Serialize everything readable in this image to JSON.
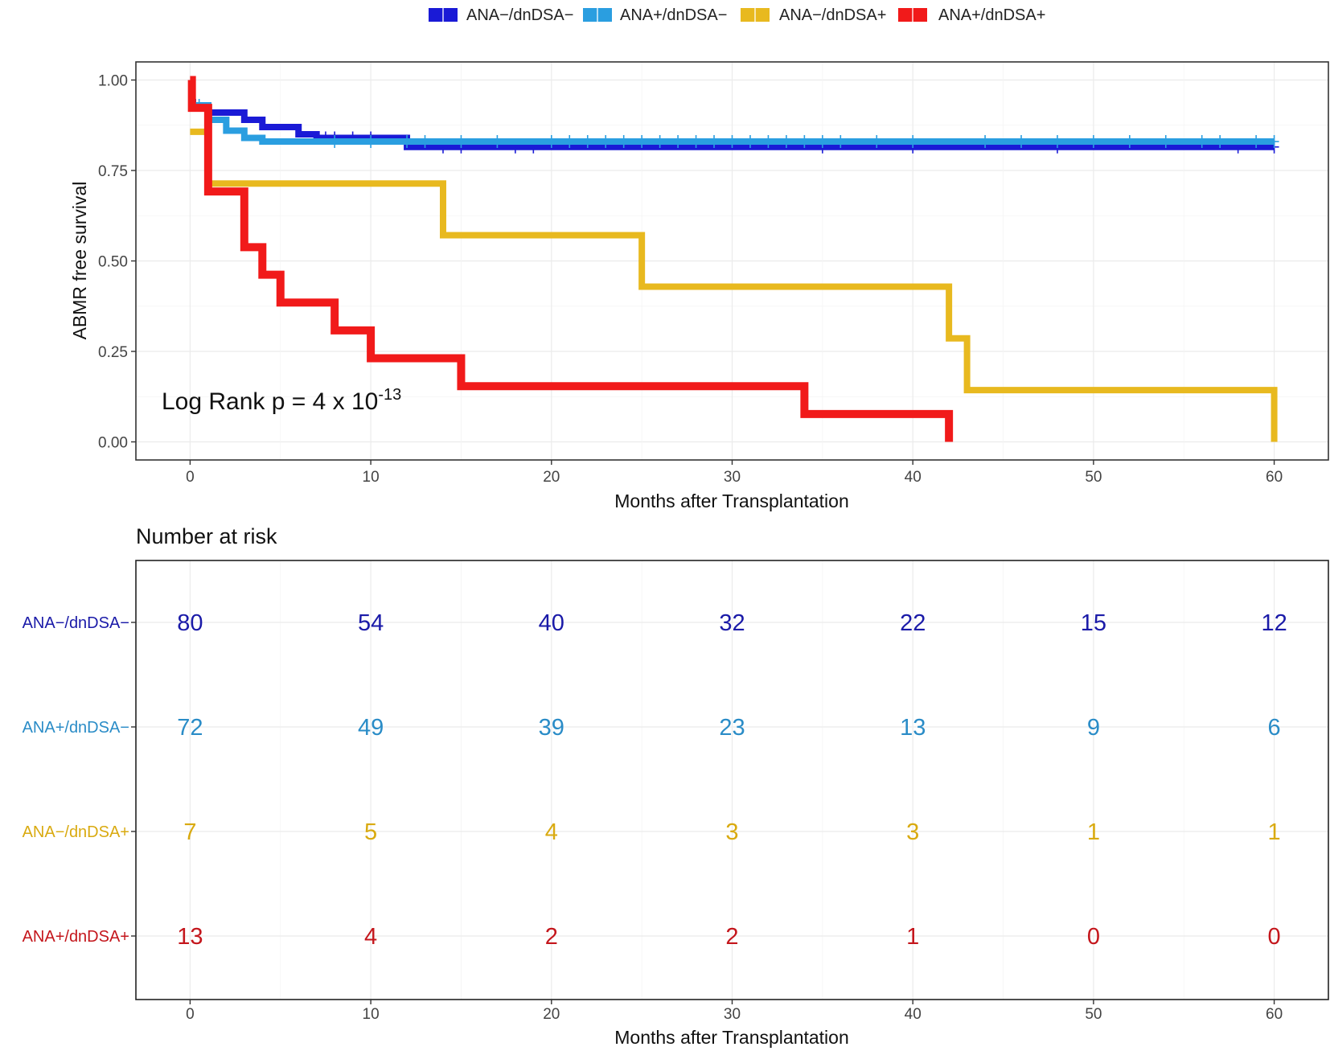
{
  "chart_data": [
    {
      "type": "line",
      "subtype": "kaplan-meier-step",
      "xlabel": "Months after Transplantation",
      "ylabel": "ABMR free survival",
      "xlim": [
        -3,
        63
      ],
      "ylim": [
        -0.05,
        1.05
      ],
      "xticks": [
        0,
        10,
        20,
        30,
        40,
        50,
        60
      ],
      "yticks": [
        0,
        0.25,
        0.5,
        0.75,
        1.0
      ],
      "ytick_labels": [
        "0.00",
        "0.25",
        "0.50",
        "0.75",
        "1.00"
      ],
      "grid": true,
      "legend_position": "top",
      "annotation": {
        "base": "Log Rank p = 4 x 10",
        "exponent": "-13"
      },
      "series": [
        {
          "name": "ANA−/dnDSA−",
          "color": "#1a1ad6",
          "steps": [
            [
              0,
              0.93
            ],
            [
              1,
              0.91
            ],
            [
              3,
              0.89
            ],
            [
              4,
              0.87
            ],
            [
              6,
              0.85
            ],
            [
              7,
              0.84
            ],
            [
              12,
              0.815
            ],
            [
              60,
              0.815
            ]
          ],
          "censor_times": [
            0.3,
            7.5,
            8,
            9,
            10,
            14,
            15,
            18,
            19,
            35,
            40,
            48,
            58,
            60
          ]
        },
        {
          "name": "ANA+/dnDSA−",
          "color": "#2a9ee0",
          "steps": [
            [
              0,
              0.93
            ],
            [
              1,
              0.89
            ],
            [
              2,
              0.86
            ],
            [
              3,
              0.84
            ],
            [
              4,
              0.83
            ],
            [
              12,
              0.83
            ],
            [
              60,
              0.83
            ]
          ],
          "censor_times": [
            0.5,
            8,
            10,
            12,
            13,
            15,
            17,
            20,
            21,
            22,
            23,
            24,
            25,
            26,
            27,
            28,
            29,
            30,
            31,
            32,
            33,
            34,
            35,
            36,
            38,
            40,
            44,
            46,
            48,
            50,
            52,
            54,
            56,
            57,
            59,
            60
          ]
        },
        {
          "name": "ANA−/dnDSA+",
          "color": "#e8b91f",
          "steps": [
            [
              0,
              0.857
            ],
            [
              1,
              0.714
            ],
            [
              14,
              0.571
            ],
            [
              25,
              0.429
            ],
            [
              42,
              0.286
            ],
            [
              43,
              0.143
            ],
            [
              60,
              0.0
            ]
          ],
          "censor_times": []
        },
        {
          "name": "ANA+/dnDSA+",
          "color": "#f11a1a",
          "steps": [
            [
              0,
              1.0
            ],
            [
              0.1,
              0.923
            ],
            [
              1,
              0.692
            ],
            [
              3,
              0.538
            ],
            [
              4,
              0.462
            ],
            [
              5,
              0.385
            ],
            [
              8,
              0.308
            ],
            [
              10,
              0.231
            ],
            [
              15,
              0.154
            ],
            [
              34,
              0.077
            ],
            [
              42,
              0.0
            ]
          ],
          "censor_times": []
        }
      ]
    },
    {
      "type": "table",
      "title": "Number at risk",
      "xlabel": "Months after Transplantation",
      "xlim": [
        -3,
        63
      ],
      "times": [
        0,
        10,
        20,
        30,
        40,
        50,
        60
      ],
      "rows": [
        {
          "label": "ANA−/dnDSA−",
          "color": "#1a1aa8",
          "values": [
            80,
            54,
            40,
            32,
            22,
            15,
            12
          ]
        },
        {
          "label": "ANA+/dnDSA−",
          "color": "#2a8cc7",
          "values": [
            72,
            49,
            39,
            23,
            13,
            9,
            6
          ]
        },
        {
          "label": "ANA−/dnDSA+",
          "color": "#d9aa10",
          "values": [
            7,
            5,
            4,
            3,
            3,
            1,
            1
          ]
        },
        {
          "label": "ANA+/dnDSA+",
          "color": "#c4161c",
          "values": [
            13,
            4,
            2,
            2,
            1,
            0,
            0
          ]
        }
      ]
    }
  ]
}
